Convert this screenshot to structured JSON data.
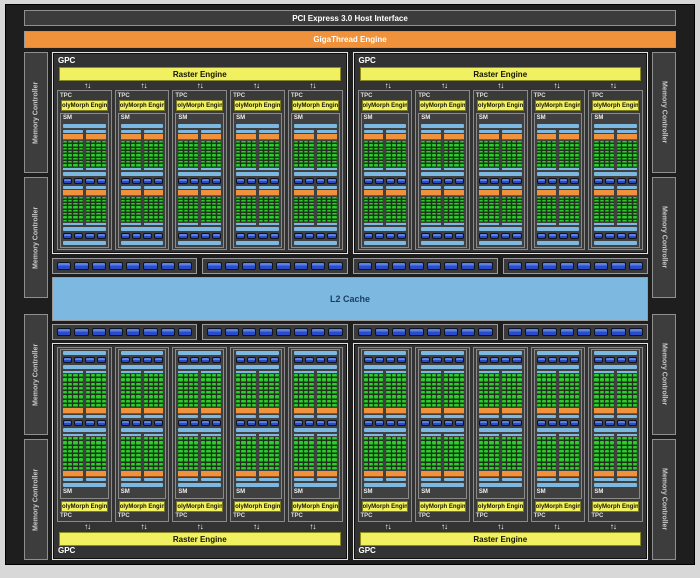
{
  "host_interface": {
    "label": "PCI Express 3.0 Host Interface"
  },
  "gigathread": {
    "label": "GigaThread Engine"
  },
  "l2_cache": {
    "label": "L2 Cache"
  },
  "memory_controllers": {
    "label": "Memory Controller",
    "left_count": 4,
    "right_count": 4
  },
  "gpcs": {
    "label": "GPC",
    "raster_label": "Raster Engine",
    "top_count": 2,
    "bottom_count": 2,
    "tpcs_per_gpc": 5,
    "arrow_pairs_per_gpc": 5,
    "arrow_glyph": "↑↓"
  },
  "tpc": {
    "label": "TPC",
    "polymorph_label": "PolyMorph Engine"
  },
  "sm": {
    "label": "SM",
    "process_blocks_per_sm": 2,
    "subblocks_per_block": 2,
    "core_cols_per_subblock": 4,
    "core_rows_per_subblock": 8,
    "load_store_pills_per_row": 4
  },
  "crossbar": {
    "strips": 2,
    "groups_per_strip": 4,
    "pills_per_group": 8
  },
  "colors": {
    "accent_yellow": "#f0f060",
    "accent_orange": "#f0913c",
    "light_blue": "#7db8e0",
    "navy_pill": "#2b4cc8",
    "core_green": "#2ecc2e",
    "panel_bg": "#1e1e1e",
    "box_bg": "#3d3d3d",
    "page_bg": "#d8d8d8"
  }
}
